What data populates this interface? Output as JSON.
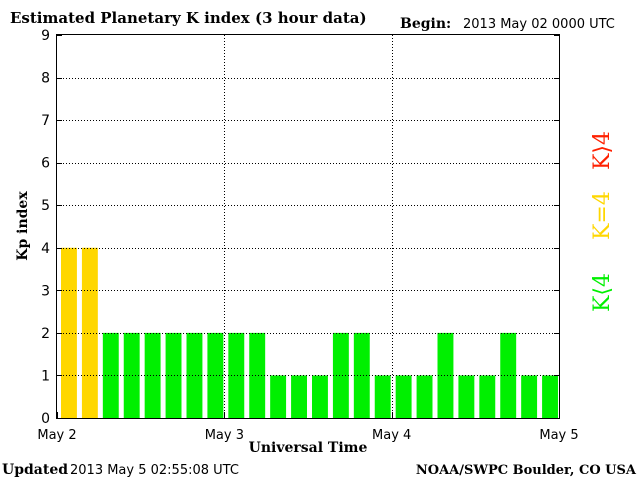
{
  "header": {
    "title": "Estimated Planetary K index (3 hour data)",
    "begin_label": "Begin:",
    "begin_value": "2013 May 02 0000 UTC"
  },
  "footer": {
    "updated_label": "Updated",
    "updated_value": "2013 May  5 02:55:08 UTC",
    "source": "NOAA/SWPC Boulder, CO USA"
  },
  "legend": {
    "high": "K⟩4",
    "equal": "K=4",
    "low": "K⟨4"
  },
  "colors": {
    "low": "#00f000",
    "equal": "#ffd700",
    "high": "#ff2000",
    "axis": "#000000",
    "grid": "#000000"
  },
  "chart_data": {
    "type": "bar",
    "title": "Estimated Planetary K index (3 hour data)",
    "xlabel": "Universal Time",
    "ylabel": "Kp index",
    "ylim": [
      0,
      9
    ],
    "yticks": [
      "0",
      "1",
      "2",
      "3",
      "4",
      "5",
      "6",
      "7",
      "8",
      "9"
    ],
    "xticks": [
      "May 2",
      "May 3",
      "May 4",
      "May 5"
    ],
    "interval_hours": 3,
    "grid": true,
    "values": [
      4,
      4,
      2,
      2,
      2,
      2,
      2,
      2,
      2,
      2,
      1,
      1,
      1,
      2,
      2,
      1,
      1,
      1,
      2,
      1,
      1,
      2,
      1,
      1
    ]
  }
}
